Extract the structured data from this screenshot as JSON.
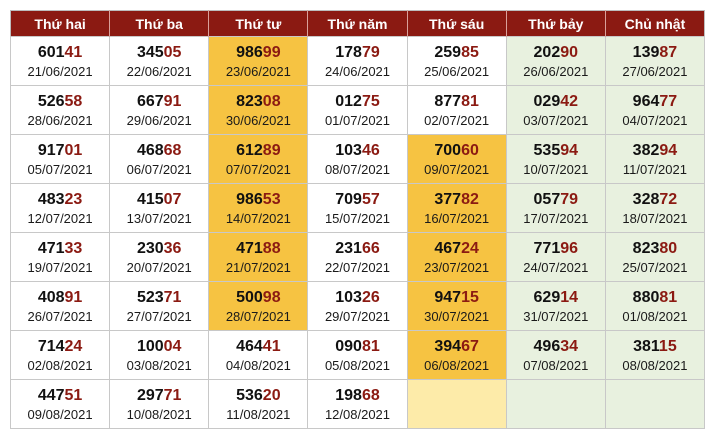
{
  "colors": {
    "header_bg": "#8b1a12",
    "header_text": "#ffffff",
    "tail_digits": "#8b1a12",
    "orange_highlight": "#f6c342",
    "pale_orange_highlight": "#fdeba9",
    "weekend_green": "#e8f1df"
  },
  "headers": [
    "Thứ hai",
    "Thứ ba",
    "Thứ tư",
    "Thứ năm",
    "Thứ sáu",
    "Thứ bảy",
    "Chủ nhật"
  ],
  "rows": [
    [
      {
        "head": "601",
        "tail": "41",
        "date": "21/06/2021",
        "hl": ""
      },
      {
        "head": "345",
        "tail": "05",
        "date": "22/06/2021",
        "hl": ""
      },
      {
        "head": "986",
        "tail": "99",
        "date": "23/06/2021",
        "hl": "orange"
      },
      {
        "head": "178",
        "tail": "79",
        "date": "24/06/2021",
        "hl": ""
      },
      {
        "head": "259",
        "tail": "85",
        "date": "25/06/2021",
        "hl": ""
      },
      {
        "head": "202",
        "tail": "90",
        "date": "26/06/2021",
        "hl": "green"
      },
      {
        "head": "139",
        "tail": "87",
        "date": "27/06/2021",
        "hl": "green"
      }
    ],
    [
      {
        "head": "526",
        "tail": "58",
        "date": "28/06/2021",
        "hl": ""
      },
      {
        "head": "667",
        "tail": "91",
        "date": "29/06/2021",
        "hl": ""
      },
      {
        "head": "823",
        "tail": "08",
        "date": "30/06/2021",
        "hl": "orange"
      },
      {
        "head": "012",
        "tail": "75",
        "date": "01/07/2021",
        "hl": ""
      },
      {
        "head": "877",
        "tail": "81",
        "date": "02/07/2021",
        "hl": ""
      },
      {
        "head": "029",
        "tail": "42",
        "date": "03/07/2021",
        "hl": "green"
      },
      {
        "head": "964",
        "tail": "77",
        "date": "04/07/2021",
        "hl": "green"
      }
    ],
    [
      {
        "head": "917",
        "tail": "01",
        "date": "05/07/2021",
        "hl": ""
      },
      {
        "head": "468",
        "tail": "68",
        "date": "06/07/2021",
        "hl": ""
      },
      {
        "head": "612",
        "tail": "89",
        "date": "07/07/2021",
        "hl": "orange"
      },
      {
        "head": "103",
        "tail": "46",
        "date": "08/07/2021",
        "hl": ""
      },
      {
        "head": "700",
        "tail": "60",
        "date": "09/07/2021",
        "hl": "orange"
      },
      {
        "head": "535",
        "tail": "94",
        "date": "10/07/2021",
        "hl": "green"
      },
      {
        "head": "382",
        "tail": "94",
        "date": "11/07/2021",
        "hl": "green"
      }
    ],
    [
      {
        "head": "483",
        "tail": "23",
        "date": "12/07/2021",
        "hl": ""
      },
      {
        "head": "415",
        "tail": "07",
        "date": "13/07/2021",
        "hl": ""
      },
      {
        "head": "986",
        "tail": "53",
        "date": "14/07/2021",
        "hl": "orange"
      },
      {
        "head": "709",
        "tail": "57",
        "date": "15/07/2021",
        "hl": ""
      },
      {
        "head": "377",
        "tail": "82",
        "date": "16/07/2021",
        "hl": "orange"
      },
      {
        "head": "057",
        "tail": "79",
        "date": "17/07/2021",
        "hl": "green"
      },
      {
        "head": "328",
        "tail": "72",
        "date": "18/07/2021",
        "hl": "green"
      }
    ],
    [
      {
        "head": "471",
        "tail": "33",
        "date": "19/07/2021",
        "hl": ""
      },
      {
        "head": "230",
        "tail": "36",
        "date": "20/07/2021",
        "hl": ""
      },
      {
        "head": "471",
        "tail": "88",
        "date": "21/07/2021",
        "hl": "orange"
      },
      {
        "head": "231",
        "tail": "66",
        "date": "22/07/2021",
        "hl": ""
      },
      {
        "head": "467",
        "tail": "24",
        "date": "23/07/2021",
        "hl": "orange"
      },
      {
        "head": "771",
        "tail": "96",
        "date": "24/07/2021",
        "hl": "green"
      },
      {
        "head": "823",
        "tail": "80",
        "date": "25/07/2021",
        "hl": "green"
      }
    ],
    [
      {
        "head": "408",
        "tail": "91",
        "date": "26/07/2021",
        "hl": ""
      },
      {
        "head": "523",
        "tail": "71",
        "date": "27/07/2021",
        "hl": ""
      },
      {
        "head": "500",
        "tail": "98",
        "date": "28/07/2021",
        "hl": "orange"
      },
      {
        "head": "103",
        "tail": "26",
        "date": "29/07/2021",
        "hl": ""
      },
      {
        "head": "947",
        "tail": "15",
        "date": "30/07/2021",
        "hl": "orange"
      },
      {
        "head": "629",
        "tail": "14",
        "date": "31/07/2021",
        "hl": "green"
      },
      {
        "head": "880",
        "tail": "81",
        "date": "01/08/2021",
        "hl": "green"
      }
    ],
    [
      {
        "head": "714",
        "tail": "24",
        "date": "02/08/2021",
        "hl": ""
      },
      {
        "head": "100",
        "tail": "04",
        "date": "03/08/2021",
        "hl": ""
      },
      {
        "head": "464",
        "tail": "41",
        "date": "04/08/2021",
        "hl": ""
      },
      {
        "head": "090",
        "tail": "81",
        "date": "05/08/2021",
        "hl": ""
      },
      {
        "head": "394",
        "tail": "67",
        "date": "06/08/2021",
        "hl": "orange"
      },
      {
        "head": "496",
        "tail": "34",
        "date": "07/08/2021",
        "hl": "green"
      },
      {
        "head": "381",
        "tail": "15",
        "date": "08/08/2021",
        "hl": "green"
      }
    ],
    [
      {
        "head": "447",
        "tail": "51",
        "date": "09/08/2021",
        "hl": ""
      },
      {
        "head": "297",
        "tail": "71",
        "date": "10/08/2021",
        "hl": ""
      },
      {
        "head": "536",
        "tail": "20",
        "date": "11/08/2021",
        "hl": ""
      },
      {
        "head": "198",
        "tail": "68",
        "date": "12/08/2021",
        "hl": ""
      },
      {
        "head": "",
        "tail": "",
        "date": "",
        "hl": "paleorange"
      },
      {
        "head": "",
        "tail": "",
        "date": "",
        "hl": "green"
      },
      {
        "head": "",
        "tail": "",
        "date": "",
        "hl": "green"
      }
    ]
  ]
}
